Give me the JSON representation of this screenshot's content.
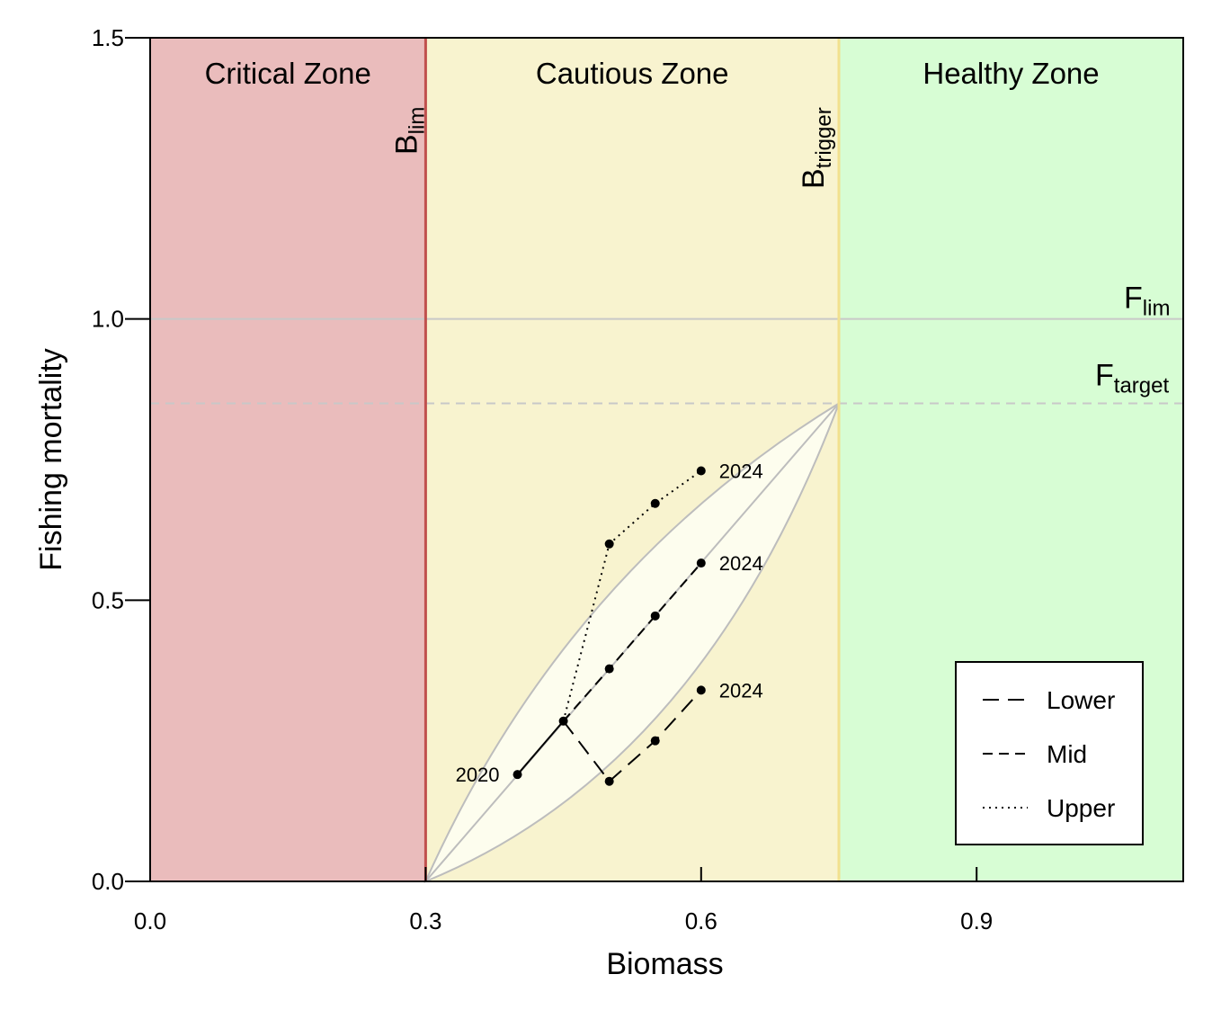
{
  "chart_data": {
    "type": "line",
    "xlabel": "Biomass",
    "ylabel": "Fishing mortality",
    "xlim": [
      0.0,
      1.125
    ],
    "ylim": [
      0.0,
      1.5
    ],
    "x_ticks": [
      "0.0",
      "0.3",
      "0.6",
      "0.9"
    ],
    "y_ticks": [
      "0.0",
      "0.5",
      "1.0",
      "1.5"
    ],
    "zones": [
      {
        "name": "Critical Zone",
        "x_from": 0.0,
        "x_to": 0.3,
        "color": "#eabcbc"
      },
      {
        "name": "Cautious Zone",
        "x_from": 0.3,
        "x_to": 0.75,
        "color": "#f8f3cf"
      },
      {
        "name": "Healthy Zone",
        "x_from": 0.75,
        "x_to": 1.125,
        "color": "#d7fdd4"
      }
    ],
    "reference_points": {
      "b_lim": {
        "value": 0.3,
        "main": "B",
        "sub": "lim",
        "color": "#c0504d"
      },
      "b_trigger": {
        "value": 0.75,
        "main": "B",
        "sub": "trigger",
        "color": "#f2e08e"
      },
      "f_lim": {
        "value": 1.0,
        "main": "F",
        "sub": "lim",
        "color": "#c8c8c8"
      },
      "f_target": {
        "value": 0.85,
        "main": "F",
        "sub": "target",
        "color": "#c8c8c8"
      }
    },
    "envelope": {
      "start": [
        0.3,
        0.0
      ],
      "end": [
        0.75,
        0.85
      ],
      "upper_control": [
        0.45,
        0.55
      ],
      "lower_control": [
        0.6,
        0.2
      ],
      "fill": "#fdfdee",
      "stroke": "#bdbdbd"
    },
    "start_point": {
      "x": 0.4,
      "y": 0.19,
      "label": "2020"
    },
    "shared_segment": {
      "x": [
        0.4,
        0.45
      ],
      "y": [
        0.19,
        0.285
      ]
    },
    "series": [
      {
        "name": "Lower",
        "dash": "long-dash",
        "x": [
          0.45,
          0.5,
          0.55,
          0.6
        ],
        "y": [
          0.285,
          0.178,
          0.25,
          0.34
        ],
        "end_label": "2024"
      },
      {
        "name": "Mid",
        "dash": "short-dash",
        "x": [
          0.45,
          0.5,
          0.55,
          0.6
        ],
        "y": [
          0.285,
          0.378,
          0.472,
          0.566
        ],
        "end_label": "2024"
      },
      {
        "name": "Upper",
        "dash": "dotted",
        "x": [
          0.45,
          0.5,
          0.55,
          0.6
        ],
        "y": [
          0.285,
          0.6,
          0.672,
          0.73
        ],
        "end_label": "2024"
      }
    ],
    "legend_position": "bottom-right"
  }
}
